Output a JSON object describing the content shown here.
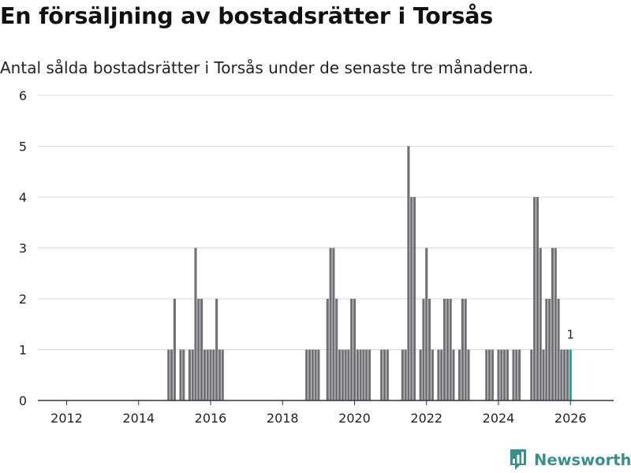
{
  "header": {
    "title": "En försäljning av bostadsrätter i Torsås",
    "subtitle": "Antal sålda bostadsrätter i Torsås under de senaste tre månaderna."
  },
  "footer": {
    "brand": "Newsworthy"
  },
  "colors": {
    "bar": "#717074",
    "highlight": "#2a9d8f",
    "grid": "#d9d9d9",
    "axis": "#333333",
    "brand": "#3a8f88"
  },
  "chart_data": {
    "type": "bar",
    "title": "En försäljning av bostadsrätter i Torsås",
    "subtitle": "Antal sålda bostadsrätter i Torsås under de senaste tre månaderna.",
    "xlabel": "",
    "ylabel": "",
    "ylim": [
      0,
      6
    ],
    "y_ticks": [
      "0",
      "1",
      "2",
      "3",
      "4",
      "5",
      "6"
    ],
    "x_ticks": [
      "2012",
      "2014",
      "2016",
      "2018",
      "2020",
      "2022",
      "2024",
      "2026"
    ],
    "grid": true,
    "series": [
      {
        "values": [
          {
            "x": "2014-11",
            "y": 1
          },
          {
            "x": "2014-12",
            "y": 1
          },
          {
            "x": "2015-01",
            "y": 2
          },
          {
            "x": "2015-02",
            "y": 0
          },
          {
            "x": "2015-03",
            "y": 1
          },
          {
            "x": "2015-04",
            "y": 1
          },
          {
            "x": "2015-05",
            "y": 0
          },
          {
            "x": "2015-06",
            "y": 1
          },
          {
            "x": "2015-07",
            "y": 1
          },
          {
            "x": "2015-08",
            "y": 3
          },
          {
            "x": "2015-09",
            "y": 2
          },
          {
            "x": "2015-10",
            "y": 2
          },
          {
            "x": "2015-11",
            "y": 1
          },
          {
            "x": "2015-12",
            "y": 1
          },
          {
            "x": "2016-01",
            "y": 1
          },
          {
            "x": "2016-02",
            "y": 1
          },
          {
            "x": "2016-03",
            "y": 2
          },
          {
            "x": "2016-04",
            "y": 1
          },
          {
            "x": "2016-05",
            "y": 1
          },
          {
            "x": "2018-09",
            "y": 1
          },
          {
            "x": "2018-10",
            "y": 1
          },
          {
            "x": "2018-11",
            "y": 1
          },
          {
            "x": "2018-12",
            "y": 1
          },
          {
            "x": "2019-01",
            "y": 1
          },
          {
            "x": "2019-02",
            "y": 0
          },
          {
            "x": "2019-03",
            "y": 0
          },
          {
            "x": "2019-04",
            "y": 2
          },
          {
            "x": "2019-05",
            "y": 3
          },
          {
            "x": "2019-06",
            "y": 3
          },
          {
            "x": "2019-07",
            "y": 2
          },
          {
            "x": "2019-08",
            "y": 1
          },
          {
            "x": "2019-09",
            "y": 1
          },
          {
            "x": "2019-10",
            "y": 1
          },
          {
            "x": "2019-11",
            "y": 1
          },
          {
            "x": "2019-12",
            "y": 2
          },
          {
            "x": "2020-01",
            "y": 2
          },
          {
            "x": "2020-02",
            "y": 1
          },
          {
            "x": "2020-03",
            "y": 1
          },
          {
            "x": "2020-04",
            "y": 1
          },
          {
            "x": "2020-05",
            "y": 1
          },
          {
            "x": "2020-06",
            "y": 1
          },
          {
            "x": "2020-10",
            "y": 1
          },
          {
            "x": "2020-11",
            "y": 1
          },
          {
            "x": "2020-12",
            "y": 1
          },
          {
            "x": "2021-05",
            "y": 1
          },
          {
            "x": "2021-06",
            "y": 1
          },
          {
            "x": "2021-07",
            "y": 5
          },
          {
            "x": "2021-08",
            "y": 4
          },
          {
            "x": "2021-09",
            "y": 4
          },
          {
            "x": "2021-10",
            "y": 0
          },
          {
            "x": "2021-11",
            "y": 1
          },
          {
            "x": "2021-12",
            "y": 2
          },
          {
            "x": "2022-01",
            "y": 3
          },
          {
            "x": "2022-02",
            "y": 2
          },
          {
            "x": "2022-03",
            "y": 1
          },
          {
            "x": "2022-04",
            "y": 0
          },
          {
            "x": "2022-05",
            "y": 1
          },
          {
            "x": "2022-06",
            "y": 1
          },
          {
            "x": "2022-07",
            "y": 2
          },
          {
            "x": "2022-08",
            "y": 2
          },
          {
            "x": "2022-09",
            "y": 2
          },
          {
            "x": "2022-10",
            "y": 1
          },
          {
            "x": "2022-11",
            "y": 0
          },
          {
            "x": "2022-12",
            "y": 1
          },
          {
            "x": "2023-01",
            "y": 2
          },
          {
            "x": "2023-02",
            "y": 2
          },
          {
            "x": "2023-03",
            "y": 1
          },
          {
            "x": "2023-09",
            "y": 1
          },
          {
            "x": "2023-10",
            "y": 1
          },
          {
            "x": "2023-11",
            "y": 1
          },
          {
            "x": "2023-12",
            "y": 0
          },
          {
            "x": "2024-01",
            "y": 1
          },
          {
            "x": "2024-02",
            "y": 1
          },
          {
            "x": "2024-03",
            "y": 1
          },
          {
            "x": "2024-04",
            "y": 1
          },
          {
            "x": "2024-05",
            "y": 0
          },
          {
            "x": "2024-06",
            "y": 1
          },
          {
            "x": "2024-07",
            "y": 1
          },
          {
            "x": "2024-08",
            "y": 1
          },
          {
            "x": "2024-12",
            "y": 1
          },
          {
            "x": "2025-01",
            "y": 4
          },
          {
            "x": "2025-02",
            "y": 4
          },
          {
            "x": "2025-03",
            "y": 3
          },
          {
            "x": "2025-04",
            "y": 1
          },
          {
            "x": "2025-05",
            "y": 2
          },
          {
            "x": "2025-06",
            "y": 2
          },
          {
            "x": "2025-07",
            "y": 3
          },
          {
            "x": "2025-08",
            "y": 3
          },
          {
            "x": "2025-09",
            "y": 2
          },
          {
            "x": "2025-10",
            "y": 1
          },
          {
            "x": "2025-11",
            "y": 1
          },
          {
            "x": "2025-12",
            "y": 1
          },
          {
            "x": "2026-01",
            "y": 1
          }
        ]
      }
    ],
    "highlight": {
      "x": "2026-01",
      "y": 1,
      "label": "1"
    }
  }
}
